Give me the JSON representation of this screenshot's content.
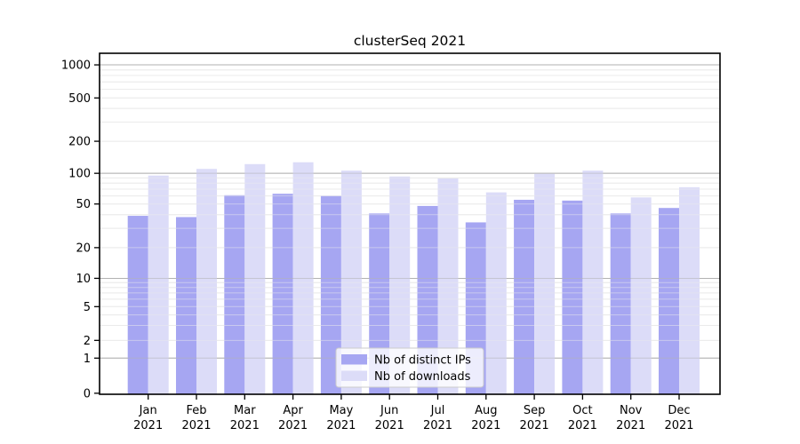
{
  "chart_data": {
    "type": "bar",
    "title": "clusterSeq 2021",
    "categories": [
      "Jan 2021",
      "Feb 2021",
      "Mar 2021",
      "Apr 2021",
      "May 2021",
      "Jun 2021",
      "Jul 2021",
      "Aug 2021",
      "Sep 2021",
      "Oct 2021",
      "Nov 2021",
      "Dec 2021"
    ],
    "series": [
      {
        "name": "Nb of distinct IPs",
        "color": "#a6a6f2",
        "values": [
          39,
          38,
          61,
          63,
          60,
          41,
          48,
          34,
          55,
          54,
          41,
          46
        ]
      },
      {
        "name": "Nb of downloads",
        "color": "#dcdcf8",
        "values": [
          95,
          110,
          122,
          127,
          106,
          93,
          89,
          65,
          99,
          106,
          58,
          73
        ]
      }
    ],
    "xlabel": "",
    "ylabel": "",
    "y_axis": {
      "scale": "symlog",
      "ticks": [
        0,
        1,
        2,
        5,
        10,
        20,
        50,
        100,
        200,
        500,
        1000
      ],
      "ylim": [
        0,
        1280
      ]
    },
    "grid": "both",
    "legend_position": "lower-center-inside"
  },
  "colors": {
    "background": "#ffffff",
    "bar_dark": "#a6a6f2",
    "bar_light": "#dcdcf8",
    "grid_major": "#b2b2b2",
    "grid_minor": "#ebebeb",
    "spine": "#000000",
    "text": "#000000",
    "legend_border": "#cccccc",
    "legend_fill": "#ffffff"
  }
}
